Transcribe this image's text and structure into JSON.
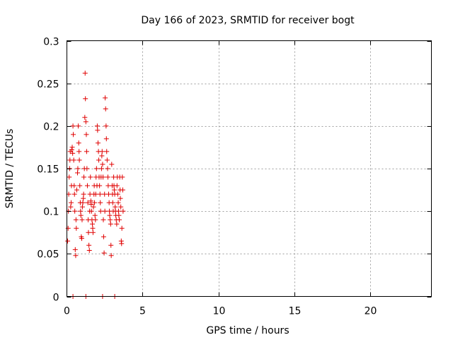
{
  "chart_data": {
    "type": "scatter",
    "title": "Day 166 of 2023, SRMTID for receiver bogt",
    "xlabel": "GPS time / hours",
    "ylabel": "SRMTID / TECUs",
    "xlim": [
      0,
      24
    ],
    "ylim": [
      0,
      0.3
    ],
    "x_ticks": [
      0,
      5,
      10,
      15,
      20
    ],
    "x_tick_labels": [
      "0",
      "5",
      "10",
      "15",
      "20"
    ],
    "y_ticks": [
      0,
      0.05,
      0.1,
      0.15,
      0.2,
      0.25,
      0.3
    ],
    "y_tick_labels": [
      "0",
      "0.05",
      "0.1",
      "0.15",
      "0.2",
      "0.25",
      "0.3"
    ],
    "grid": true,
    "marker": "+",
    "color": "#e00000",
    "series": [
      {
        "name": "SRMTID",
        "points": [
          [
            0.05,
            0.065
          ],
          [
            0.08,
            0.08
          ],
          [
            0.1,
            0.1
          ],
          [
            0.12,
            0.12
          ],
          [
            0.15,
            0.14
          ],
          [
            0.18,
            0.15
          ],
          [
            0.2,
            0.16
          ],
          [
            0.22,
            0.17
          ],
          [
            0.25,
            0.105
          ],
          [
            0.28,
            0.11
          ],
          [
            0.3,
            0.13
          ],
          [
            0.32,
            0.172
          ],
          [
            0.35,
            0.175
          ],
          [
            0.38,
            0.168
          ],
          [
            0.4,
            0.2
          ],
          [
            0.42,
            0.19
          ],
          [
            0.45,
            0.16
          ],
          [
            0.48,
            0.13
          ],
          [
            0.5,
            0.12
          ],
          [
            0.52,
            0.1
          ],
          [
            0.55,
            0.055
          ],
          [
            0.58,
            0.048
          ],
          [
            0.6,
            0.09
          ],
          [
            0.62,
            0.08
          ],
          [
            0.65,
            0.125
          ],
          [
            0.7,
            0.145
          ],
          [
            0.72,
            0.15
          ],
          [
            0.75,
            0.2
          ],
          [
            0.78,
            0.18
          ],
          [
            0.8,
            0.17
          ],
          [
            0.82,
            0.16
          ],
          [
            0.85,
            0.13
          ],
          [
            0.88,
            0.11
          ],
          [
            0.9,
            0.1
          ],
          [
            0.92,
            0.095
          ],
          [
            0.95,
            0.07
          ],
          [
            0.98,
            0.068
          ],
          [
            1.0,
            0.09
          ],
          [
            1.02,
            0.105
          ],
          [
            1.05,
            0.11
          ],
          [
            1.08,
            0.115
          ],
          [
            1.1,
            0.12
          ],
          [
            1.12,
            0.14
          ],
          [
            1.15,
            0.15
          ],
          [
            1.18,
            0.21
          ],
          [
            1.2,
            0.262
          ],
          [
            1.22,
            0.232
          ],
          [
            1.25,
            0.205
          ],
          [
            1.28,
            0.19
          ],
          [
            1.3,
            0.17
          ],
          [
            1.32,
            0.15
          ],
          [
            1.35,
            0.13
          ],
          [
            1.38,
            0.11
          ],
          [
            1.4,
            0.09
          ],
          [
            1.42,
            0.075
          ],
          [
            1.45,
            0.06
          ],
          [
            1.48,
            0.054
          ],
          [
            1.5,
            0.1
          ],
          [
            1.52,
            0.12
          ],
          [
            1.55,
            0.14
          ],
          [
            1.58,
            0.112
          ],
          [
            1.6,
            0.108
          ],
          [
            1.62,
            0.1
          ],
          [
            1.65,
            0.09
          ],
          [
            1.68,
            0.085
          ],
          [
            1.7,
            0.08
          ],
          [
            1.72,
            0.075
          ],
          [
            1.75,
            0.105
          ],
          [
            1.78,
            0.12
          ],
          [
            1.8,
            0.13
          ],
          [
            1.82,
            0.11
          ],
          [
            1.85,
            0.095
          ],
          [
            1.88,
            0.09
          ],
          [
            1.9,
            0.12
          ],
          [
            1.92,
            0.14
          ],
          [
            1.95,
            0.15
          ],
          [
            1.98,
            0.13
          ],
          [
            2.0,
            0.2
          ],
          [
            2.02,
            0.195
          ],
          [
            2.05,
            0.18
          ],
          [
            2.08,
            0.17
          ],
          [
            2.1,
            0.16
          ],
          [
            2.12,
            0.14
          ],
          [
            2.15,
            0.13
          ],
          [
            2.18,
            0.12
          ],
          [
            2.2,
            0.11
          ],
          [
            2.22,
            0.1
          ],
          [
            2.25,
            0.14
          ],
          [
            2.28,
            0.15
          ],
          [
            2.3,
            0.165
          ],
          [
            2.32,
            0.17
          ],
          [
            2.35,
            0.155
          ],
          [
            2.38,
            0.14
          ],
          [
            2.4,
            0.09
          ],
          [
            2.42,
            0.07
          ],
          [
            2.45,
            0.051
          ],
          [
            2.48,
            0.12
          ],
          [
            2.5,
            0.1
          ],
          [
            2.52,
            0.233
          ],
          [
            2.55,
            0.22
          ],
          [
            2.58,
            0.2
          ],
          [
            2.6,
            0.185
          ],
          [
            2.62,
            0.17
          ],
          [
            2.65,
            0.16
          ],
          [
            2.68,
            0.15
          ],
          [
            2.7,
            0.14
          ],
          [
            2.72,
            0.13
          ],
          [
            2.75,
            0.12
          ],
          [
            2.78,
            0.11
          ],
          [
            2.8,
            0.1
          ],
          [
            2.82,
            0.095
          ],
          [
            2.85,
            0.09
          ],
          [
            2.88,
            0.085
          ],
          [
            2.9,
            0.06
          ],
          [
            2.92,
            0.048
          ],
          [
            2.95,
            0.155
          ],
          [
            2.98,
            0.13
          ],
          [
            3.0,
            0.12
          ],
          [
            3.02,
            0.11
          ],
          [
            3.05,
            0.1
          ],
          [
            3.08,
            0.14
          ],
          [
            3.1,
            0.13
          ],
          [
            3.12,
            0.125
          ],
          [
            3.15,
            0.12
          ],
          [
            3.18,
            0.105
          ],
          [
            3.2,
            0.1
          ],
          [
            3.22,
            0.095
          ],
          [
            3.25,
            0.09
          ],
          [
            3.28,
            0.085
          ],
          [
            3.3,
            0.13
          ],
          [
            3.32,
            0.14
          ],
          [
            3.35,
            0.12
          ],
          [
            3.38,
            0.11
          ],
          [
            3.4,
            0.1
          ],
          [
            3.42,
            0.095
          ],
          [
            3.45,
            0.09
          ],
          [
            3.48,
            0.14
          ],
          [
            3.5,
            0.125
          ],
          [
            3.52,
            0.115
          ],
          [
            3.55,
            0.105
          ],
          [
            3.58,
            0.065
          ],
          [
            3.6,
            0.062
          ],
          [
            3.62,
            0.08
          ],
          [
            3.65,
            0.14
          ],
          [
            3.68,
            0.125
          ],
          [
            3.7,
            0.1
          ],
          [
            0.4,
            0
          ],
          [
            1.25,
            0
          ],
          [
            2.35,
            0
          ],
          [
            3.15,
            0
          ]
        ]
      }
    ]
  }
}
